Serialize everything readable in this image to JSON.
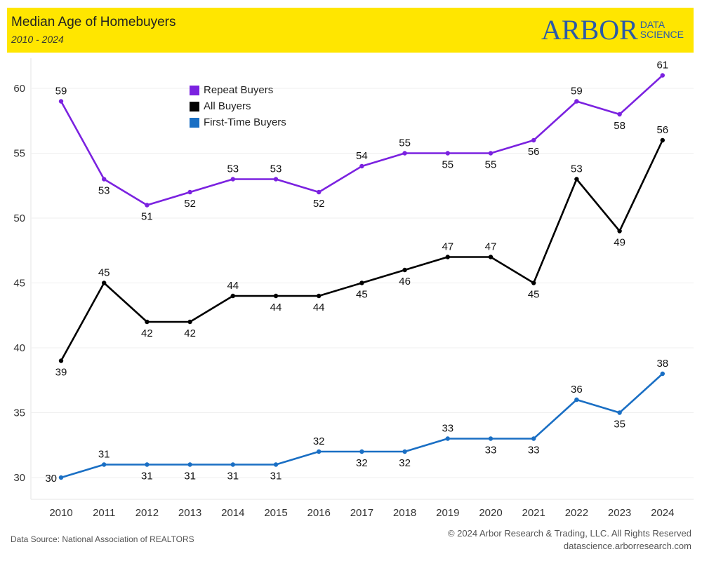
{
  "header": {
    "title": "Median Age of Homebuyers",
    "subtitle": "2010 - 2024",
    "logo_main": "ARBOR",
    "logo_line1": "DATA",
    "logo_line2": "SCIENCE"
  },
  "footer": {
    "source": "Data Source: National Association of REALTORS",
    "copyright": "© 2024 Arbor Research & Trading, LLC. All Rights Reserved",
    "website": "datascience.arborresearch.com"
  },
  "colors": {
    "header_bg": "#ffe600",
    "repeat": "#7b22e0",
    "all": "#000000",
    "first": "#1a6fc4",
    "logo": "#2b5aa8"
  },
  "chart_data": {
    "type": "line",
    "title": "Median Age of Homebuyers",
    "subtitle": "2010 - 2024",
    "xlabel": "",
    "ylabel": "",
    "categories": [
      "2010",
      "2011",
      "2012",
      "2013",
      "2014",
      "2015",
      "2016",
      "2017",
      "2018",
      "2019",
      "2020",
      "2021",
      "2022",
      "2023",
      "2024"
    ],
    "yticks": [
      30,
      35,
      40,
      45,
      50,
      55,
      60
    ],
    "ylim": [
      28,
      62.5
    ],
    "grid": true,
    "legend_position": "top-left",
    "series": [
      {
        "name": "Repeat Buyers",
        "color": "#7b22e0",
        "values": [
          59,
          53,
          51,
          52,
          53,
          53,
          52,
          54,
          55,
          55,
          55,
          56,
          59,
          58,
          61
        ],
        "label_pos": [
          "above",
          "below",
          "below",
          "below",
          "above",
          "above",
          "below",
          "above",
          "above",
          "below",
          "below",
          "below",
          "above",
          "below",
          "above"
        ]
      },
      {
        "name": "All Buyers",
        "color": "#000000",
        "values": [
          39,
          45,
          42,
          42,
          44,
          44,
          44,
          45,
          46,
          47,
          47,
          45,
          53,
          49,
          56
        ],
        "label_pos": [
          "below",
          "above",
          "below",
          "below",
          "above",
          "below",
          "below",
          "below",
          "below",
          "above",
          "above",
          "below",
          "above",
          "below",
          "above"
        ]
      },
      {
        "name": "First-Time Buyers",
        "color": "#1a6fc4",
        "values": [
          30,
          31,
          31,
          31,
          31,
          31,
          32,
          32,
          32,
          33,
          33,
          33,
          36,
          35,
          38
        ],
        "label_pos": [
          "left",
          "above",
          "below",
          "below",
          "below",
          "below",
          "above",
          "below",
          "below",
          "above",
          "below",
          "below",
          "above",
          "below",
          "above"
        ]
      }
    ]
  }
}
